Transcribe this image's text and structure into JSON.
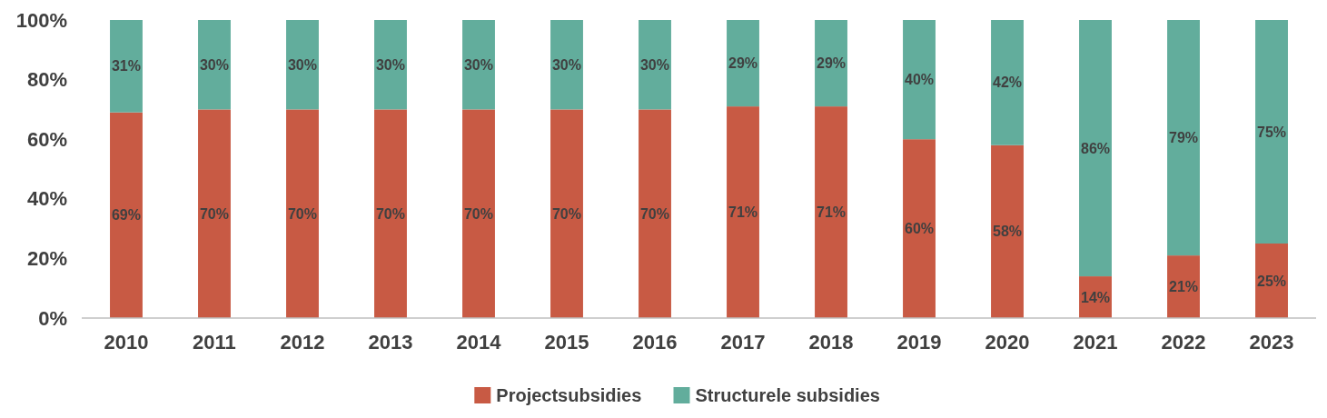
{
  "chart_data": {
    "type": "bar",
    "stacked": true,
    "legend": "bottom",
    "categories": [
      "2010",
      "2011",
      "2012",
      "2013",
      "2014",
      "2015",
      "2016",
      "2017",
      "2018",
      "2019",
      "2020",
      "2021",
      "2022",
      "2023"
    ],
    "ylim": [
      0,
      100
    ],
    "yticks": [
      {
        "value": 0,
        "label": "0%"
      },
      {
        "value": 20,
        "label": "20%"
      },
      {
        "value": 40,
        "label": "40%"
      },
      {
        "value": 60,
        "label": "60%"
      },
      {
        "value": 80,
        "label": "80%"
      },
      {
        "value": 100,
        "label": "100%"
      }
    ],
    "series": [
      {
        "name": "Projectsubsidies",
        "color": "#c85a44",
        "values": [
          69,
          70,
          70,
          70,
          70,
          70,
          70,
          71,
          71,
          60,
          58,
          14,
          21,
          25
        ],
        "value_labels": [
          "69%",
          "70%",
          "70%",
          "70%",
          "70%",
          "70%",
          "70%",
          "71%",
          "71%",
          "60%",
          "58%",
          "14%",
          "21%",
          "25%"
        ]
      },
      {
        "name": "Structurele subsidies",
        "color": "#62ad9c",
        "values": [
          31,
          30,
          30,
          30,
          30,
          30,
          30,
          29,
          29,
          40,
          42,
          86,
          79,
          75
        ],
        "value_labels": [
          "31%",
          "30%",
          "30%",
          "30%",
          "30%",
          "30%",
          "30%",
          "29%",
          "29%",
          "40%",
          "42%",
          "86%",
          "79%",
          "75%"
        ]
      }
    ]
  }
}
